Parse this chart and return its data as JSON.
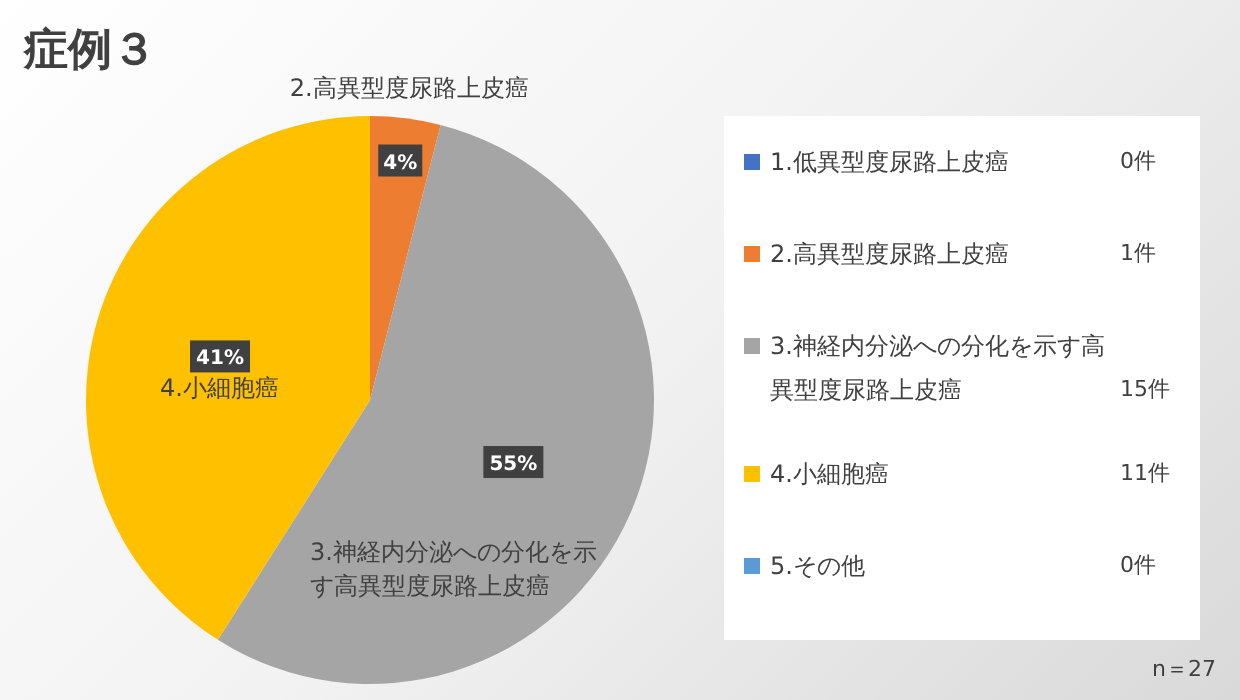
{
  "chart_data": {
    "type": "pie",
    "title": "症例３",
    "categories": [
      "1.低異型度尿路上皮癌",
      "2.高異型度尿路上皮癌",
      "3.神経内分泌への分化を示す高異型度尿路上皮癌",
      "4.小細胞癌",
      "5.その他"
    ],
    "values": [
      0,
      4,
      55,
      41,
      0
    ],
    "colors": [
      "#4472c4",
      "#ed7d31",
      "#a5a5a5",
      "#ffc000",
      "#5b9bd5"
    ],
    "value_labels": [
      null,
      "4%",
      "55%",
      "41%",
      null
    ],
    "annotations": [
      "0件",
      "1件",
      "15件",
      "11件",
      "0件",
      "n＝27"
    ],
    "legend": "right"
  }
}
